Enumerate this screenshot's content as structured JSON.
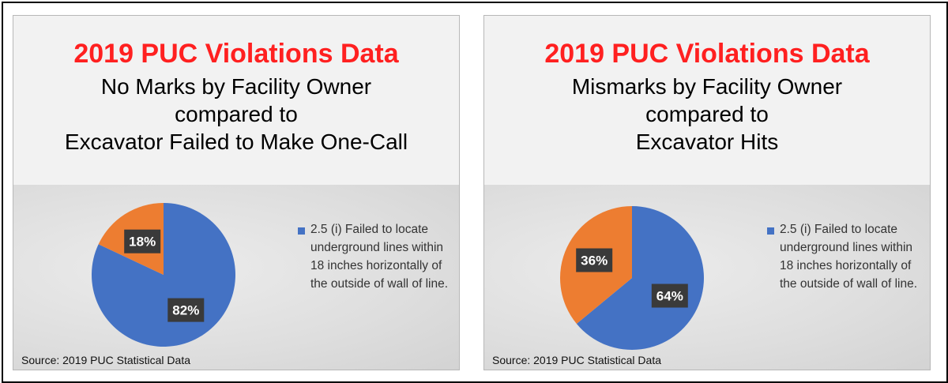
{
  "colors": {
    "red_title": "#ff2020",
    "slice_blue": "#4472c4",
    "slice_orange": "#ed7d31",
    "label_box": "#3a3a3a"
  },
  "panels": [
    {
      "title": "2019 PUC Violations Data",
      "subtitle_lines": [
        "No Marks by Facility Owner",
        "compared to",
        "Excavator Failed to Make One-Call"
      ],
      "legend_label": "2.5 (i) Failed to locate underground lines within 18 inches horizontally of the outside of wall of line.",
      "source": "Source: 2019 PUC Statistical Data"
    },
    {
      "title": "2019 PUC Violations Data",
      "subtitle_lines": [
        "Mismarks by Facility Owner",
        "compared to",
        "Excavator Hits"
      ],
      "legend_label": "2.5 (i) Failed to locate underground lines within 18 inches horizontally of the outside of wall of line.",
      "source": "Source: 2019 PUC Statistical Data"
    }
  ],
  "chart_data": [
    {
      "type": "pie",
      "title": "2019 PUC Violations Data",
      "slices": [
        {
          "name": "2.5 (i) Failed to locate underground lines within 18 inches horizontally of the outside of wall of line.",
          "value": 82,
          "label": "82%",
          "color": "#4472c4"
        },
        {
          "name": "",
          "value": 18,
          "label": "18%",
          "color": "#ed7d31"
        }
      ],
      "legend": "right"
    },
    {
      "type": "pie",
      "title": "2019 PUC Violations Data",
      "slices": [
        {
          "name": "2.5 (i) Failed to locate underground lines within 18 inches horizontally of the outside of wall of line.",
          "value": 64,
          "label": "64%",
          "color": "#4472c4"
        },
        {
          "name": "",
          "value": 36,
          "label": "36%",
          "color": "#ed7d31"
        }
      ],
      "legend": "right"
    }
  ]
}
